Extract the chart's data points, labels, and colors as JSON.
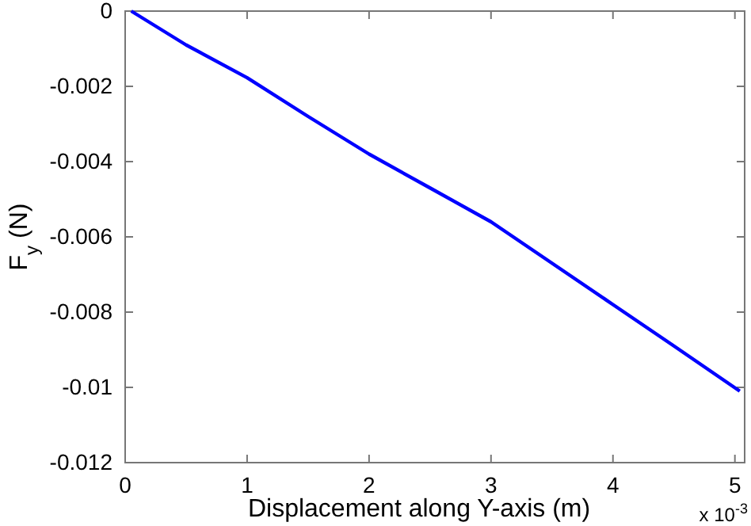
{
  "chart_data": {
    "type": "line",
    "xlabel": "Displacement along Y-axis (m)",
    "ylabel": "F$_{y}$ (N)",
    "annotations": [
      "x 10$^{-3}$"
    ],
    "x": [
      0.05,
      0.5,
      1,
      1.5,
      2,
      2.5,
      3,
      3.5,
      4,
      4.5,
      5.04
    ],
    "series": [
      {
        "color": "#0000ff",
        "values": [
          0,
          -0.0009,
          -0.00177,
          -0.0028,
          -0.0038,
          -0.0047,
          -0.0056,
          -0.0067,
          -0.0078,
          -0.0089,
          -0.0101
        ]
      }
    ],
    "xlim": [
      0,
      5.08
    ],
    "ylim": [
      -0.012,
      0
    ],
    "xticks": [
      0,
      1,
      2,
      3,
      4,
      5
    ],
    "yticks": [
      -0.012,
      -0.01,
      -0.008,
      -0.006,
      -0.004,
      -0.002,
      0
    ],
    "grid": false,
    "line_style": "solid",
    "marker": "none"
  }
}
